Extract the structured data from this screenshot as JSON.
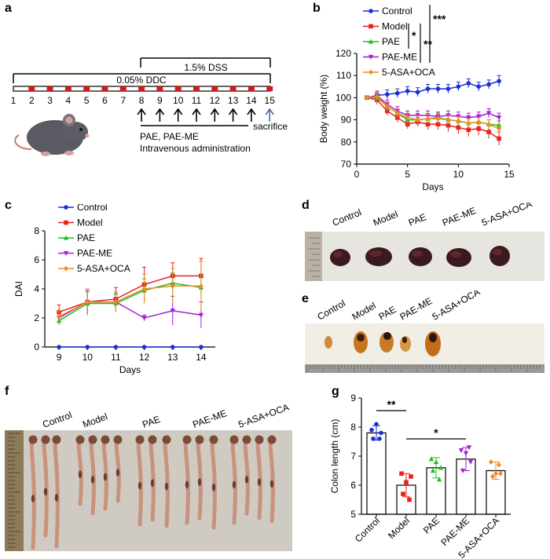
{
  "panels": {
    "a": {
      "letter": "a",
      "dss_label": "1.5% DSS",
      "ddc_label": "0.05% DDC",
      "days": [
        "1",
        "2",
        "3",
        "4",
        "5",
        "6",
        "7",
        "8",
        "9",
        "10",
        "11",
        "12",
        "13",
        "14",
        "15"
      ],
      "treatment_label": "PAE, PAE-ME",
      "admin_label": "Intravenous administration",
      "sacrifice_label": "sacrifice"
    },
    "b": {
      "letter": "b",
      "significance": [
        "***",
        "*",
        "**"
      ]
    },
    "c": {
      "letter": "c"
    },
    "d": {
      "letter": "d",
      "labels": [
        "Control",
        "Model",
        "PAE",
        "PAE-ME",
        "5-ASA+OCA"
      ]
    },
    "e": {
      "letter": "e",
      "labels": [
        "Control",
        "Model",
        "PAE",
        "PAE-ME",
        "5-ASA+OCA"
      ]
    },
    "f": {
      "letter": "f",
      "labels": [
        "Control",
        "Model",
        "PAE",
        "PAE-ME",
        "5-ASA+OCA"
      ]
    },
    "g": {
      "letter": "g",
      "significance": [
        "**",
        "*"
      ]
    }
  },
  "colors": {
    "control": "#1a2fd6",
    "model": "#e8221c",
    "pae": "#1fbf1f",
    "paeme": "#a21fd6",
    "asa": "#f08a24",
    "timeline_mark": "#d11b1b",
    "sacrifice_arrow": "#4a6f9a"
  },
  "chart_data": [
    {
      "id": "b",
      "type": "line",
      "title": "",
      "xlabel": "Days",
      "ylabel": "Body weight (%)",
      "xlim": [
        0,
        15
      ],
      "ylim": [
        70,
        120
      ],
      "xticks": [
        "0",
        "5",
        "10",
        "15"
      ],
      "yticks": [
        "70",
        "80",
        "90",
        "100",
        "110",
        "120"
      ],
      "x": [
        1,
        2,
        3,
        4,
        5,
        6,
        7,
        8,
        9,
        10,
        11,
        12,
        13,
        14
      ],
      "legend": [
        "Control",
        "Model",
        "PAE",
        "PAE-ME",
        "5-ASA+OCA"
      ],
      "series": [
        {
          "name": "Control",
          "values": [
            100,
            101,
            101.5,
            102,
            103,
            102.5,
            104,
            104,
            104,
            105,
            106.5,
            105,
            106,
            107.5
          ],
          "err": [
            0.5,
            1.5,
            2,
            2,
            2,
            2,
            2,
            2,
            2,
            2,
            2,
            2,
            2,
            2.5
          ]
        },
        {
          "name": "Model",
          "values": [
            100,
            99,
            94,
            91,
            88,
            89,
            88,
            88,
            87.5,
            86.5,
            85.5,
            86,
            84.5,
            81.5
          ],
          "err": [
            0.5,
            2,
            2,
            2,
            2,
            2,
            2.5,
            2.5,
            3,
            3,
            3,
            3,
            3,
            3
          ]
        },
        {
          "name": "PAE",
          "values": [
            100,
            100,
            96,
            93,
            90,
            90,
            90.5,
            91,
            90,
            89.5,
            88.5,
            89,
            88,
            87.5
          ],
          "err": [
            0.5,
            2,
            2,
            2,
            2,
            2,
            2,
            2,
            2,
            2,
            2,
            2,
            2,
            2
          ]
        },
        {
          "name": "PAE-ME",
          "values": [
            100,
            101,
            97,
            94,
            92,
            92,
            92,
            91.5,
            92,
            91.5,
            91,
            91.5,
            93,
            91
          ],
          "err": [
            0.5,
            2,
            2,
            2,
            2,
            2,
            2,
            2,
            2,
            2,
            2,
            2,
            2,
            2
          ]
        },
        {
          "name": "5-ASA+OCA",
          "values": [
            100,
            100.5,
            96,
            93,
            91,
            90,
            90.5,
            90.5,
            90,
            89.5,
            88.5,
            89,
            88,
            86
          ],
          "err": [
            0.5,
            2,
            2,
            2,
            2,
            2,
            2,
            2,
            2,
            2,
            2,
            2,
            2,
            2
          ]
        }
      ]
    },
    {
      "id": "c",
      "type": "line",
      "title": "",
      "xlabel": "Days",
      "ylabel": "DAI",
      "xlim": [
        8.5,
        14.5
      ],
      "ylim": [
        0,
        8
      ],
      "xticks": [
        "9",
        "10",
        "11",
        "12",
        "13",
        "14"
      ],
      "yticks": [
        "0",
        "2",
        "4",
        "6",
        "8"
      ],
      "x": [
        9,
        10,
        11,
        12,
        13,
        14
      ],
      "legend": [
        "Control",
        "Model",
        "PAE",
        "PAE-ME",
        "5-ASA+OCA"
      ],
      "series": [
        {
          "name": "Control",
          "values": [
            0,
            0,
            0,
            0,
            0,
            0
          ],
          "err": [
            0,
            0,
            0,
            0,
            0,
            0
          ]
        },
        {
          "name": "Model",
          "values": [
            2.4,
            3.1,
            3.3,
            4.3,
            4.9,
            4.9
          ],
          "err": [
            0.5,
            0.9,
            0.8,
            1.2,
            0.9,
            1.2
          ]
        },
        {
          "name": "PAE",
          "values": [
            1.8,
            3.0,
            3.0,
            3.9,
            4.4,
            4.1
          ],
          "err": [
            0.3,
            0.8,
            0.6,
            0.8,
            0.7,
            0.8
          ]
        },
        {
          "name": "PAE-ME",
          "values": [
            2.0,
            3.1,
            3.1,
            2.0,
            2.5,
            2.2
          ],
          "err": [
            0.3,
            0.8,
            0.6,
            0.2,
            1.0,
            0.9
          ]
        },
        {
          "name": "5-ASA+OCA",
          "values": [
            2.1,
            3.1,
            3.1,
            4.0,
            4.2,
            4.2
          ],
          "err": [
            0.4,
            0.9,
            0.7,
            1.0,
            1.2,
            1.7
          ]
        }
      ]
    },
    {
      "id": "g",
      "type": "bar",
      "title": "",
      "xlabel": "",
      "ylabel": "Colon length (cm)",
      "ylim": [
        5,
        9
      ],
      "yticks": [
        "5",
        "6",
        "7",
        "8",
        "9"
      ],
      "categories": [
        "Control",
        "Model",
        "PAE",
        "PAE-ME",
        "5-ASA+OCA"
      ],
      "values": [
        7.8,
        6.0,
        6.6,
        6.9,
        6.5
      ],
      "err": [
        0.25,
        0.4,
        0.35,
        0.4,
        0.3
      ],
      "points": [
        [
          7.9,
          7.8,
          7.6,
          7.6,
          8.1
        ],
        [
          6.4,
          6.3,
          5.7,
          5.5,
          6.1
        ],
        [
          6.9,
          6.6,
          6.5,
          6.2,
          6.8
        ],
        [
          7.2,
          6.8,
          6.5,
          7.3,
          7.1
        ],
        [
          6.8,
          6.4,
          6.3,
          6.7,
          6.4
        ]
      ]
    }
  ]
}
